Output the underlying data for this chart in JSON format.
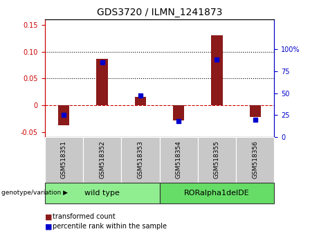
{
  "title": "GDS3720 / ILMN_1241873",
  "categories": [
    "GSM518351",
    "GSM518352",
    "GSM518353",
    "GSM518354",
    "GSM518355",
    "GSM518356"
  ],
  "bar_values": [
    -0.038,
    0.086,
    0.015,
    -0.028,
    0.13,
    -0.022
  ],
  "scatter_values": [
    25,
    85,
    47,
    18,
    88,
    20
  ],
  "bar_color": "#8B1A1A",
  "scatter_color": "#0000CD",
  "ylim_left": [
    -0.06,
    0.16
  ],
  "ylim_right": [
    0,
    133.33
  ],
  "yticks_left": [
    -0.05,
    0.0,
    0.05,
    0.1,
    0.15
  ],
  "ytick_labels_left": [
    "-0.05",
    "0",
    "0.05",
    "0.10",
    "0.15"
  ],
  "yticks_right": [
    0,
    25,
    50,
    75,
    100
  ],
  "ytick_labels_right": [
    "0",
    "25",
    "50",
    "75",
    "100%"
  ],
  "dotted_lines": [
    0.05,
    0.1
  ],
  "group_labels": [
    "wild type",
    "RORalpha1delDE"
  ],
  "group_colors": [
    "#90EE90",
    "#66DD66"
  ],
  "genotype_label": "genotype/variation",
  "legend_bar_label": "transformed count",
  "legend_scatter_label": "percentile rank within the sample",
  "background_color": "#FFFFFF",
  "tick_label_bg": "#C8C8C8",
  "bar_width": 0.3
}
